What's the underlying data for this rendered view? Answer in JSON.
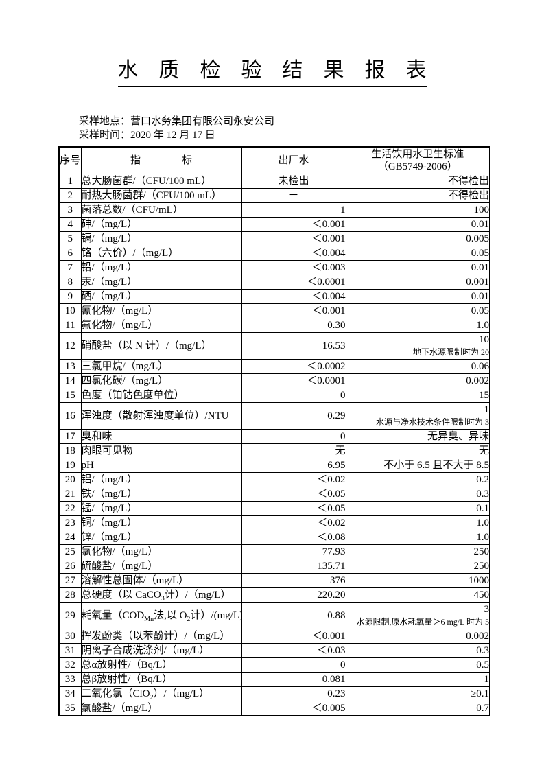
{
  "page": {
    "title": "水　质　检　验　结　果　报　表"
  },
  "meta": {
    "location_label": "采样地点：",
    "location_value": "营口水务集团有限公司永安公司",
    "time_label": "采样时间：",
    "time_value": "2020 年 12 月 17 日"
  },
  "table": {
    "headers": {
      "no": "序号",
      "indicator": "指　　　　标",
      "factory": "出厂水",
      "standard_line1": "生活饮用水卫生标准",
      "standard_line2": "（GB5749-2006）"
    },
    "rows": [
      {
        "no": "1",
        "indicator": "总大肠菌群/（CFU/100 mL）",
        "factory": "未检出",
        "factory_align": "center",
        "standard": "不得检出"
      },
      {
        "no": "2",
        "indicator": "耐热大肠菌群/（CFU/100 mL）",
        "factory": "－",
        "factory_align": "center",
        "standard": "不得检出"
      },
      {
        "no": "3",
        "indicator": "菌落总数/（CFU/mL）",
        "factory": "1",
        "standard": "100"
      },
      {
        "no": "4",
        "indicator": "砷/（mg/L）",
        "factory": "＜0.001",
        "standard": "0.01"
      },
      {
        "no": "5",
        "indicator": "镉/（mg/L）",
        "factory": "＜0.001",
        "standard": "0.005"
      },
      {
        "no": "6",
        "indicator": "铬（六价）/（mg/L）",
        "factory": "＜0.004",
        "standard": "0.05"
      },
      {
        "no": "7",
        "indicator": "铅/（mg/L）",
        "factory": "＜0.003",
        "standard": "0.01"
      },
      {
        "no": "8",
        "indicator": "汞/（mg/L）",
        "factory": "＜0.0001",
        "standard": "0.001"
      },
      {
        "no": "9",
        "indicator": "硒/（mg/L）",
        "factory": "＜0.004",
        "standard": "0.01"
      },
      {
        "no": "10",
        "indicator": "氰化物/（mg/L）",
        "factory": "＜0.001",
        "standard": "0.05"
      },
      {
        "no": "11",
        "indicator": "氟化物/（mg/L）",
        "factory": "0.30",
        "standard": "1.0"
      },
      {
        "no": "12",
        "indicator": "硝酸盐（以 N 计）/（mg/L）",
        "factory": "16.53",
        "standard": "10",
        "standard_note": "地下水源限制时为 20"
      },
      {
        "no": "13",
        "indicator": "三氯甲烷/（mg/L）",
        "factory": "＜0.0002",
        "standard": "0.06"
      },
      {
        "no": "14",
        "indicator": "四氯化碳/（mg/L）",
        "factory": "＜0.0001",
        "standard": "0.002"
      },
      {
        "no": "15",
        "indicator": "色度（铂钴色度单位）",
        "factory": "0",
        "standard": "15"
      },
      {
        "no": "16",
        "indicator": "浑浊度（散射浑浊度单位）/NTU",
        "factory": "0.29",
        "standard": "1",
        "standard_note": "水源与净水技术条件限制时为 3"
      },
      {
        "no": "17",
        "indicator": "臭和味",
        "factory": "0",
        "standard": "无异臭、异味"
      },
      {
        "no": "18",
        "indicator": "肉眼可见物",
        "factory": "无",
        "standard": "无"
      },
      {
        "no": "19",
        "indicator": "pH",
        "factory": "6.95",
        "standard": "不小于 6.5 且不大于 8.5"
      },
      {
        "no": "20",
        "indicator": "铝/（mg/L）",
        "factory": "＜0.02",
        "standard": "0.2"
      },
      {
        "no": "21",
        "indicator": "铁/（mg/L）",
        "factory": "＜0.05",
        "standard": "0.3"
      },
      {
        "no": "22",
        "indicator": "锰/（mg/L）",
        "factory": "＜0.05",
        "standard": "0.1"
      },
      {
        "no": "23",
        "indicator": "铜/（mg/L）",
        "factory": "＜0.02",
        "standard": "1.0"
      },
      {
        "no": "24",
        "indicator": "锌/（mg/L）",
        "factory": "＜0.08",
        "standard": "1.0"
      },
      {
        "no": "25",
        "indicator": "氯化物/（mg/L）",
        "factory": "77.93",
        "standard": "250"
      },
      {
        "no": "26",
        "indicator": "硫酸盐/（mg/L）",
        "factory": "135.71",
        "standard": "250"
      },
      {
        "no": "27",
        "indicator": "溶解性总固体/（mg/L）",
        "factory": "376",
        "standard": "1000"
      },
      {
        "no": "28",
        "indicator": "总硬度（以 CaCO~3~计）/（mg/L）",
        "factory": "220.20",
        "standard": "450"
      },
      {
        "no": "29",
        "indicator": "耗氧量（COD~Mn~法,以 O~2~计）/(mg/L)",
        "factory": "0.88",
        "standard": "3",
        "standard_note": "水源限制,原水耗氧量＞6 mg/L 时为 5"
      },
      {
        "no": "30",
        "indicator": "挥发酚类（以苯酚计）/（mg/L）",
        "factory": "＜0.001",
        "standard": "0.002"
      },
      {
        "no": "31",
        "indicator": "阴离子合成洗涤剂/（mg/L）",
        "factory": "＜0.03",
        "standard": "0.3"
      },
      {
        "no": "32",
        "indicator": "总α放射性/（Bq/L）",
        "factory": "0",
        "standard": "0.5"
      },
      {
        "no": "33",
        "indicator": "总β放射性/（Bq/L）",
        "factory": "0.081",
        "standard": "1"
      },
      {
        "no": "34",
        "indicator": "二氧化氯（ClO~2~）/（mg/L）",
        "factory": "0.23",
        "standard": "≥0.1"
      },
      {
        "no": "35",
        "indicator": "氯酸盐/（mg/L）",
        "factory": "＜0.005",
        "standard": "0.7"
      }
    ]
  }
}
